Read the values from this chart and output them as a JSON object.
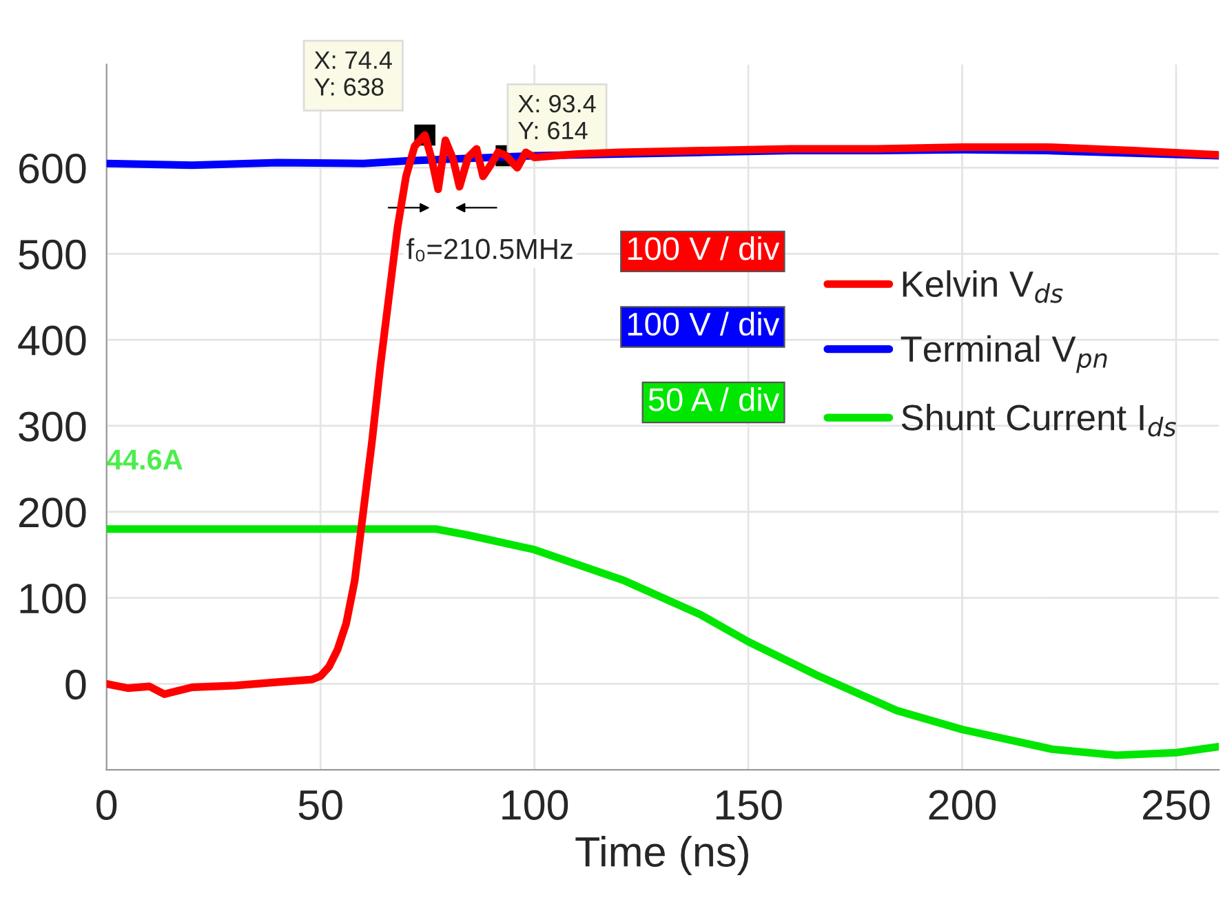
{
  "chart_data": {
    "type": "line",
    "xlabel": "Time (ns)",
    "xlim": [
      0,
      260
    ],
    "ylim": [
      -100,
      720
    ],
    "xticks": [
      0,
      50,
      100,
      150,
      200,
      250
    ],
    "yticks": [
      0,
      100,
      200,
      300,
      400,
      500,
      600
    ],
    "grid": true,
    "legend": "right",
    "marker": "none",
    "line_style": "solid",
    "series": [
      {
        "name": "Kelvin V$_{ds}$",
        "color": "#ff0000",
        "x": [
          0,
          5,
          10,
          13.5,
          20,
          30,
          40,
          48,
          50,
          52,
          54,
          56,
          58,
          60,
          62,
          64,
          66,
          68,
          70,
          72,
          74.4,
          76,
          77.5,
          79.2,
          81,
          82.5,
          84.5,
          86.5,
          88,
          90,
          91.5,
          93.4,
          96,
          98,
          100,
          110,
          120,
          140,
          160,
          180,
          200,
          220,
          240,
          260
        ],
        "values": [
          0,
          -5,
          -3,
          -12,
          -4,
          -2,
          2,
          5,
          9,
          20,
          40,
          70,
          120,
          200,
          280,
          370,
          450,
          530,
          590,
          625,
          638,
          610,
          575,
          632,
          610,
          578,
          612,
          622,
          590,
          605,
          618,
          614,
          600,
          618,
          612,
          616,
          618,
          620,
          622,
          622,
          624,
          624,
          620,
          615
        ]
      },
      {
        "name": "Terminal V$_{pn}$",
        "color": "#0000ff",
        "x": [
          0,
          20,
          40,
          60,
          70,
          80,
          90,
          100,
          120,
          140,
          160,
          180,
          200,
          220,
          240,
          260
        ],
        "values": [
          605,
          603,
          606,
          605,
          608,
          610,
          612,
          614,
          616,
          618,
          620,
          620,
          621,
          620,
          617,
          614
        ]
      },
      {
        "name": "Shunt Current I$_{ds}$",
        "color": "#00e600",
        "x": [
          0,
          77,
          84.5,
          100,
          121,
          139,
          150,
          166.5,
          184.7,
          200,
          221,
          236,
          250,
          260
        ],
        "values": [
          180,
          180,
          173,
          156,
          120,
          80,
          49,
          9,
          -31,
          -53,
          -76,
          -83,
          -80,
          -73
        ]
      }
    ],
    "annotations": [
      "100 V / div",
      "100 V / div",
      "50 A / div",
      {
        "text": "X: 74.4\nY: 638",
        "x": 74.4,
        "y": 638
      },
      {
        "text": "X: 93.4\nY: 614",
        "x": 93.4,
        "y": 614
      },
      "f₀=210.5MHz",
      {
        "text": "44.6A",
        "x": 0,
        "y": 180
      }
    ]
  }
}
